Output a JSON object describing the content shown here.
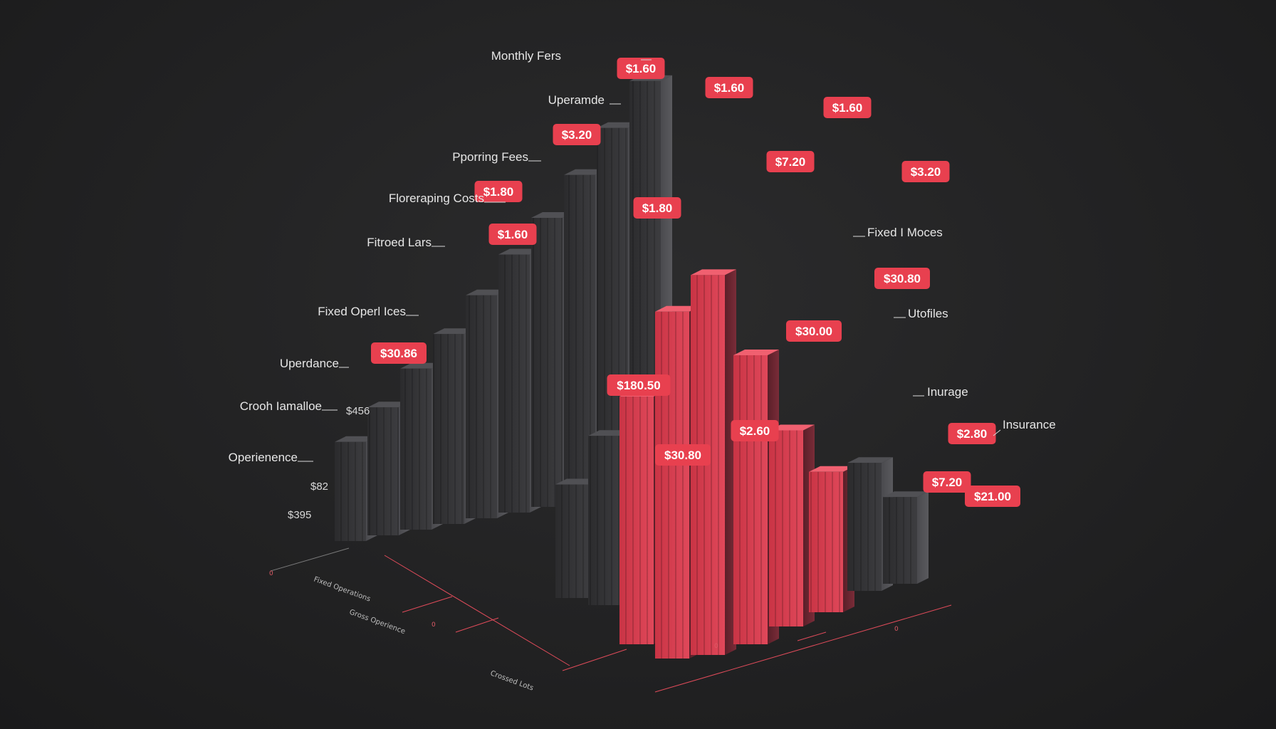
{
  "chart_data": {
    "type": "bar",
    "title": "",
    "xlabel": "",
    "ylabel": "",
    "grid": false,
    "legend": "none",
    "colors": {
      "background": "#242425",
      "dark_bar": "#3a3a3c",
      "red_bar": "#d93a4c",
      "tag": "#e8404f"
    },
    "value_tags": [
      "$1.60",
      "$1.60",
      "$1.60",
      "$3.20",
      "$7.20",
      "$3.20",
      "$1.80",
      "$1.80",
      "$30.80",
      "$1.60",
      "$30.00",
      "$30.86",
      "$180.50",
      "$2.60",
      "$30.80",
      "$2.80",
      "$7.20",
      "$21.00"
    ],
    "side_values": [
      "$456",
      "$82",
      "$395"
    ],
    "callout_labels": [
      "Monthly Fers",
      "Uperamde",
      "Pporring Fees",
      "Floreraping Costs",
      "Fitroed Lars",
      "Fixed Operl Ices",
      "Uperdance",
      "Crooh Iamalloe",
      "Operienence",
      "Fixed I Moces",
      "Utofiles",
      "Inurage",
      "Insurance"
    ],
    "axis_labels": [
      "Fixed Operations",
      "Gross Operience",
      "Crossed Lots"
    ],
    "axis_ticks": [
      "0",
      "0",
      "0",
      "0"
    ],
    "bars": [
      {
        "value": 48,
        "color": "dark"
      },
      {
        "value": 62,
        "color": "dark"
      },
      {
        "value": 78,
        "color": "dark"
      },
      {
        "value": 92,
        "color": "dark"
      },
      {
        "value": 108,
        "color": "dark"
      },
      {
        "value": 125,
        "color": "dark"
      },
      {
        "value": 140,
        "color": "dark"
      },
      {
        "value": 158,
        "color": "dark"
      },
      {
        "value": 178,
        "color": "dark"
      },
      {
        "value": 198,
        "color": "dark"
      },
      {
        "value": 55,
        "color": "dark"
      },
      {
        "value": 82,
        "color": "dark"
      },
      {
        "value": 120,
        "color": "red"
      },
      {
        "value": 168,
        "color": "red"
      },
      {
        "value": 184,
        "color": "red"
      },
      {
        "value": 140,
        "color": "red"
      },
      {
        "value": 95,
        "color": "red"
      },
      {
        "value": 68,
        "color": "red"
      },
      {
        "value": 62,
        "color": "dark"
      },
      {
        "value": 42,
        "color": "dark"
      }
    ]
  }
}
